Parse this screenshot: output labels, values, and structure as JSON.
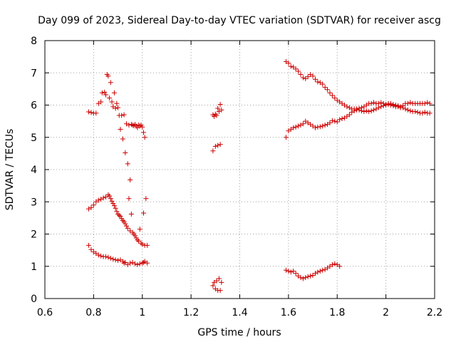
{
  "chart_data": {
    "type": "scatter",
    "title": "Day 099 of 2023, Sidereal Day-to-day VTEC variation (SDTVAR) for receiver ascg",
    "xlabel": "GPS time / hours",
    "ylabel": "SDTVAR / TECUs",
    "xlim": [
      0.6,
      2.2
    ],
    "ylim": [
      0,
      8
    ],
    "xticks": [
      0.6,
      0.8,
      1.0,
      1.2,
      1.4,
      1.6,
      1.8,
      2.0,
      2.2
    ],
    "xtick_labels": [
      "0.6",
      "0.8",
      "1",
      "1.2",
      "1.4",
      "1.6",
      "1.8",
      "2",
      "2.2"
    ],
    "yticks": [
      0,
      1,
      2,
      3,
      4,
      5,
      6,
      7,
      8
    ],
    "ytick_labels": [
      "0",
      "1",
      "2",
      "3",
      "4",
      "5",
      "6",
      "7",
      "8"
    ],
    "grid": true,
    "marker": "+",
    "color": "#cc0000",
    "series": [
      {
        "name": "SDTVAR",
        "points": [
          [
            0.78,
            5.79
          ],
          [
            0.79,
            5.77
          ],
          [
            0.8,
            5.75
          ],
          [
            0.81,
            5.75
          ],
          [
            0.82,
            6.05
          ],
          [
            0.83,
            6.1
          ],
          [
            0.835,
            6.38
          ],
          [
            0.845,
            6.4
          ],
          [
            0.85,
            6.32
          ],
          [
            0.855,
            6.95
          ],
          [
            0.86,
            6.9
          ],
          [
            0.865,
            6.22
          ],
          [
            0.87,
            6.7
          ],
          [
            0.875,
            6.1
          ],
          [
            0.88,
            5.95
          ],
          [
            0.885,
            6.38
          ],
          [
            0.89,
            5.9
          ],
          [
            0.895,
            6.05
          ],
          [
            0.9,
            5.92
          ],
          [
            0.905,
            5.68
          ],
          [
            0.91,
            5.25
          ],
          [
            0.915,
            5.68
          ],
          [
            0.92,
            4.95
          ],
          [
            0.925,
            5.7
          ],
          [
            0.93,
            4.52
          ],
          [
            0.935,
            5.42
          ],
          [
            0.94,
            4.18
          ],
          [
            0.945,
            5.38
          ],
          [
            0.95,
            3.68
          ],
          [
            0.955,
            5.4
          ],
          [
            0.96,
            5.38
          ],
          [
            0.965,
            5.36
          ],
          [
            0.97,
            5.4
          ],
          [
            0.975,
            5.35
          ],
          [
            0.98,
            5.3
          ],
          [
            0.985,
            5.38
          ],
          [
            0.99,
            5.35
          ],
          [
            0.995,
            5.38
          ],
          [
            1.0,
            5.32
          ],
          [
            1.005,
            5.15
          ],
          [
            1.01,
            5.0
          ],
          [
            0.78,
            2.78
          ],
          [
            0.79,
            2.82
          ],
          [
            0.8,
            2.9
          ],
          [
            0.81,
            3.0
          ],
          [
            0.82,
            3.05
          ],
          [
            0.83,
            3.08
          ],
          [
            0.84,
            3.12
          ],
          [
            0.85,
            3.15
          ],
          [
            0.86,
            3.22
          ],
          [
            0.865,
            3.18
          ],
          [
            0.87,
            3.1
          ],
          [
            0.875,
            3.02
          ],
          [
            0.88,
            2.95
          ],
          [
            0.885,
            2.88
          ],
          [
            0.89,
            2.8
          ],
          [
            0.895,
            2.7
          ],
          [
            0.9,
            2.62
          ],
          [
            0.905,
            2.58
          ],
          [
            0.91,
            2.55
          ],
          [
            0.915,
            2.48
          ],
          [
            0.92,
            2.42
          ],
          [
            0.925,
            2.38
          ],
          [
            0.93,
            2.32
          ],
          [
            0.935,
            2.25
          ],
          [
            0.94,
            2.18
          ],
          [
            0.945,
            3.1
          ],
          [
            0.95,
            2.1
          ],
          [
            0.955,
            2.62
          ],
          [
            0.96,
            2.05
          ],
          [
            0.965,
            2.0
          ],
          [
            0.97,
            1.95
          ],
          [
            0.975,
            1.88
          ],
          [
            0.98,
            1.82
          ],
          [
            0.985,
            1.78
          ],
          [
            0.99,
            2.15
          ],
          [
            0.995,
            1.72
          ],
          [
            1.0,
            1.68
          ],
          [
            1.005,
            2.65
          ],
          [
            1.01,
            1.65
          ],
          [
            1.015,
            3.1
          ],
          [
            1.02,
            1.65
          ],
          [
            0.78,
            1.65
          ],
          [
            0.79,
            1.52
          ],
          [
            0.8,
            1.45
          ],
          [
            0.81,
            1.4
          ],
          [
            0.82,
            1.35
          ],
          [
            0.83,
            1.32
          ],
          [
            0.84,
            1.3
          ],
          [
            0.85,
            1.3
          ],
          [
            0.86,
            1.28
          ],
          [
            0.87,
            1.25
          ],
          [
            0.88,
            1.22
          ],
          [
            0.89,
            1.2
          ],
          [
            0.9,
            1.18
          ],
          [
            0.91,
            1.2
          ],
          [
            0.92,
            1.15
          ],
          [
            0.925,
            1.1
          ],
          [
            0.93,
            1.12
          ],
          [
            0.94,
            1.05
          ],
          [
            0.95,
            1.1
          ],
          [
            0.96,
            1.12
          ],
          [
            0.97,
            1.08
          ],
          [
            0.98,
            1.05
          ],
          [
            0.99,
            1.08
          ],
          [
            1.0,
            1.1
          ],
          [
            1.005,
            1.12
          ],
          [
            1.01,
            1.15
          ],
          [
            1.02,
            1.1
          ],
          [
            1.29,
            5.7
          ],
          [
            1.295,
            5.65
          ],
          [
            1.3,
            5.72
          ],
          [
            1.305,
            5.68
          ],
          [
            1.31,
            5.9
          ],
          [
            1.315,
            5.8
          ],
          [
            1.32,
            6.02
          ],
          [
            1.325,
            5.85
          ],
          [
            1.29,
            4.58
          ],
          [
            1.3,
            4.72
          ],
          [
            1.31,
            4.75
          ],
          [
            1.32,
            4.78
          ],
          [
            1.29,
            0.4
          ],
          [
            1.295,
            0.5
          ],
          [
            1.3,
            0.3
          ],
          [
            1.305,
            0.55
          ],
          [
            1.31,
            0.25
          ],
          [
            1.315,
            0.62
          ],
          [
            1.32,
            0.25
          ],
          [
            1.325,
            0.5
          ],
          [
            1.59,
            7.35
          ],
          [
            1.6,
            7.3
          ],
          [
            1.61,
            7.2
          ],
          [
            1.62,
            7.18
          ],
          [
            1.63,
            7.12
          ],
          [
            1.64,
            7.05
          ],
          [
            1.65,
            6.95
          ],
          [
            1.66,
            6.85
          ],
          [
            1.67,
            6.82
          ],
          [
            1.68,
            6.88
          ],
          [
            1.69,
            6.95
          ],
          [
            1.7,
            6.9
          ],
          [
            1.71,
            6.8
          ],
          [
            1.72,
            6.72
          ],
          [
            1.73,
            6.7
          ],
          [
            1.74,
            6.65
          ],
          [
            1.75,
            6.55
          ],
          [
            1.76,
            6.48
          ],
          [
            1.77,
            6.38
          ],
          [
            1.78,
            6.3
          ],
          [
            1.79,
            6.22
          ],
          [
            1.8,
            6.15
          ],
          [
            1.81,
            6.1
          ],
          [
            1.82,
            6.05
          ],
          [
            1.83,
            6.0
          ],
          [
            1.84,
            5.95
          ],
          [
            1.85,
            5.92
          ],
          [
            1.86,
            5.88
          ],
          [
            1.87,
            5.88
          ],
          [
            1.88,
            5.85
          ],
          [
            1.89,
            5.85
          ],
          [
            1.9,
            5.82
          ],
          [
            1.91,
            5.8
          ],
          [
            1.92,
            5.82
          ],
          [
            1.93,
            5.8
          ],
          [
            1.94,
            5.82
          ],
          [
            1.95,
            5.85
          ],
          [
            1.96,
            5.88
          ],
          [
            1.97,
            5.92
          ],
          [
            1.98,
            5.95
          ],
          [
            1.99,
            5.98
          ],
          [
            2.0,
            6.0
          ],
          [
            2.01,
            6.02
          ],
          [
            2.02,
            6.05
          ],
          [
            2.03,
            6.02
          ],
          [
            2.04,
            6.0
          ],
          [
            2.05,
            5.98
          ],
          [
            2.06,
            5.95
          ],
          [
            2.07,
            5.92
          ],
          [
            2.08,
            5.88
          ],
          [
            2.09,
            5.85
          ],
          [
            2.1,
            5.82
          ],
          [
            2.11,
            5.8
          ],
          [
            2.12,
            5.8
          ],
          [
            2.13,
            5.78
          ],
          [
            2.14,
            5.75
          ],
          [
            2.15,
            5.75
          ],
          [
            2.16,
            5.78
          ],
          [
            2.17,
            5.75
          ],
          [
            2.18,
            5.75
          ],
          [
            1.59,
            5.0
          ],
          [
            1.6,
            5.2
          ],
          [
            1.61,
            5.25
          ],
          [
            1.62,
            5.3
          ],
          [
            1.63,
            5.32
          ],
          [
            1.64,
            5.35
          ],
          [
            1.65,
            5.38
          ],
          [
            1.66,
            5.42
          ],
          [
            1.67,
            5.5
          ],
          [
            1.68,
            5.45
          ],
          [
            1.69,
            5.4
          ],
          [
            1.7,
            5.35
          ],
          [
            1.71,
            5.3
          ],
          [
            1.72,
            5.32
          ],
          [
            1.73,
            5.33
          ],
          [
            1.74,
            5.35
          ],
          [
            1.75,
            5.38
          ],
          [
            1.76,
            5.4
          ],
          [
            1.77,
            5.45
          ],
          [
            1.78,
            5.52
          ],
          [
            1.79,
            5.5
          ],
          [
            1.8,
            5.48
          ],
          [
            1.81,
            5.55
          ],
          [
            1.82,
            5.58
          ],
          [
            1.83,
            5.6
          ],
          [
            1.84,
            5.65
          ],
          [
            1.85,
            5.7
          ],
          [
            1.86,
            5.78
          ],
          [
            1.87,
            5.82
          ],
          [
            1.88,
            5.88
          ],
          [
            1.89,
            5.9
          ],
          [
            1.9,
            5.92
          ],
          [
            1.91,
            5.95
          ],
          [
            1.92,
            6.0
          ],
          [
            1.93,
            6.05
          ],
          [
            1.94,
            6.05
          ],
          [
            1.95,
            6.08
          ],
          [
            1.96,
            6.05
          ],
          [
            1.97,
            6.05
          ],
          [
            1.98,
            6.08
          ],
          [
            1.99,
            6.05
          ],
          [
            2.0,
            6.02
          ],
          [
            2.01,
            6.05
          ],
          [
            2.02,
            6.0
          ],
          [
            2.03,
            5.98
          ],
          [
            2.04,
            5.95
          ],
          [
            2.05,
            5.95
          ],
          [
            2.06,
            5.92
          ],
          [
            2.07,
            5.98
          ],
          [
            2.08,
            6.05
          ],
          [
            2.09,
            6.05
          ],
          [
            2.1,
            6.08
          ],
          [
            2.11,
            6.05
          ],
          [
            2.12,
            6.05
          ],
          [
            2.13,
            6.05
          ],
          [
            2.14,
            6.05
          ],
          [
            2.15,
            6.05
          ],
          [
            2.16,
            6.05
          ],
          [
            2.17,
            6.08
          ],
          [
            2.18,
            6.05
          ],
          [
            1.59,
            0.88
          ],
          [
            1.6,
            0.85
          ],
          [
            1.61,
            0.82
          ],
          [
            1.62,
            0.85
          ],
          [
            1.63,
            0.78
          ],
          [
            1.64,
            0.7
          ],
          [
            1.65,
            0.65
          ],
          [
            1.66,
            0.62
          ],
          [
            1.67,
            0.65
          ],
          [
            1.68,
            0.68
          ],
          [
            1.69,
            0.7
          ],
          [
            1.7,
            0.72
          ],
          [
            1.71,
            0.78
          ],
          [
            1.72,
            0.82
          ],
          [
            1.73,
            0.85
          ],
          [
            1.74,
            0.88
          ],
          [
            1.75,
            0.9
          ],
          [
            1.76,
            0.95
          ],
          [
            1.77,
            1.0
          ],
          [
            1.78,
            1.05
          ],
          [
            1.79,
            1.08
          ],
          [
            1.8,
            1.05
          ],
          [
            1.81,
            1.0
          ]
        ]
      }
    ]
  }
}
